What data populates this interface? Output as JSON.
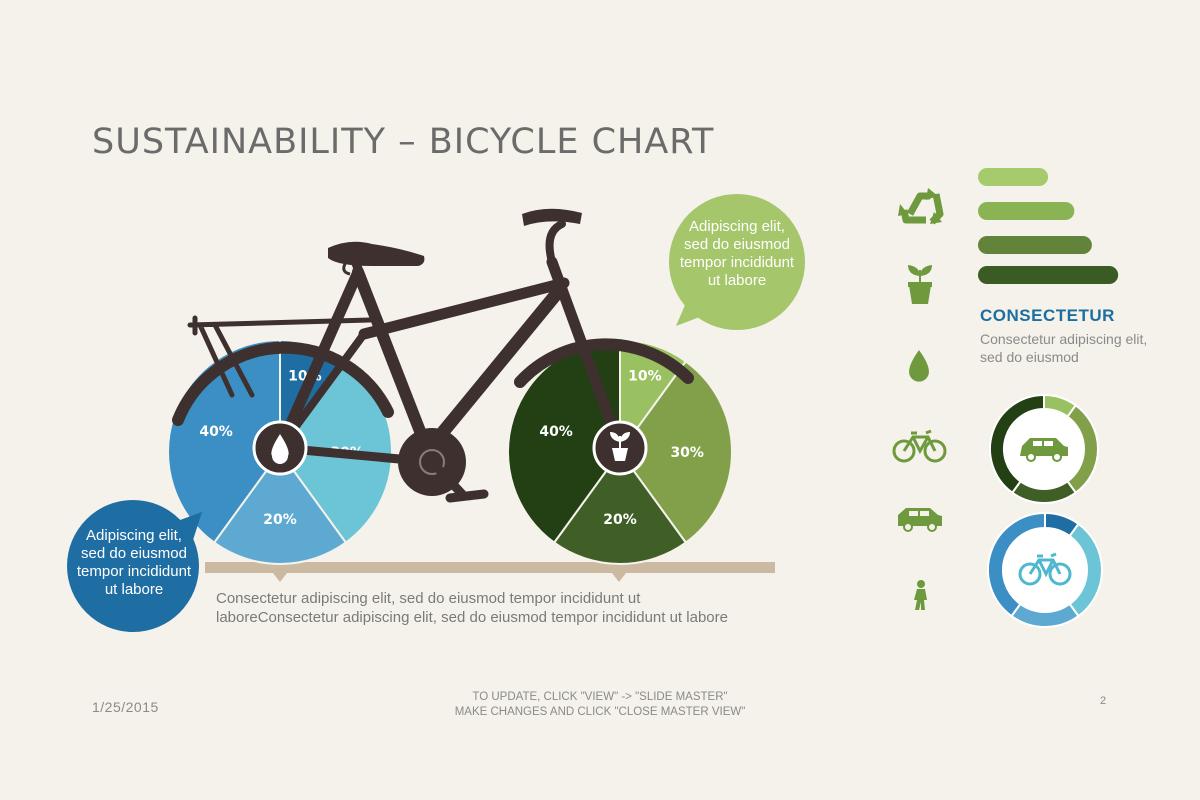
{
  "slide": {
    "title": "SUSTAINABILITY – BICYCLE CHART",
    "bubble_right": "Adipiscing elit, sed do eiusmod tempor incididunt ut labore",
    "bubble_left": "Adipiscing elit, sed do eiusmod tempor incididunt ut labore",
    "caption_line1": "Consectetur adipiscing elit, sed do eiusmod tempor incididunt ut",
    "caption_line2": "laboreConsectetur adipiscing elit, sed do eiusmod tempor incididunt ut labore",
    "legend_title": "CONSECTETUR",
    "legend_text": "Consectetur adipiscing elit, sed do eiusmod",
    "footer_date": "1/25/2015",
    "footer_note_line1": "TO UPDATE, CLICK \"VIEW\" -> \"SLIDE MASTER\"",
    "footer_note_line2": "MAKE CHANGES AND CLICK \"CLOSE MASTER VIEW\"",
    "page_number": "2"
  },
  "icons": [
    "recycle-icon",
    "plant-pot-icon",
    "water-drop-icon",
    "bicycle-icon",
    "car-icon",
    "pedestrian-icon"
  ],
  "colors": {
    "background": "#f4f2ea",
    "frame": "#3e302e",
    "blue_palette": [
      "#1f6ea3",
      "#6cc5d6",
      "#5ea9d1",
      "#3b8fc4"
    ],
    "green_palette": [
      "#9ac161",
      "#82a04a",
      "#3f5f27",
      "#233f14"
    ],
    "green_bars": [
      "#a6cb6c",
      "#8ab454",
      "#62843a",
      "#3a5b24"
    ],
    "accent_text": "#1d6fa0"
  },
  "chart_data": [
    {
      "type": "pie",
      "name": "rear-wheel",
      "labels": [
        "10%",
        "30%",
        "20%",
        "40%"
      ],
      "values": [
        10,
        30,
        20,
        40
      ],
      "colors": [
        "#1f6ea3",
        "#6cc5d6",
        "#5ea9d1",
        "#3b8fc4"
      ]
    },
    {
      "type": "pie",
      "name": "front-wheel",
      "labels": [
        "10%",
        "30%",
        "20%",
        "40%"
      ],
      "values": [
        10,
        30,
        20,
        40
      ],
      "colors": [
        "#9ac161",
        "#82a04a",
        "#3f5f27",
        "#233f14"
      ]
    },
    {
      "type": "bar",
      "orientation": "horizontal",
      "values": [
        0.48,
        0.66,
        0.78,
        0.96
      ],
      "colors": [
        "#a6cb6c",
        "#8ab454",
        "#62843a",
        "#3a5b24"
      ]
    },
    {
      "type": "pie",
      "name": "car-donut",
      "values": [
        10,
        30,
        20,
        40
      ],
      "colors": [
        "#9ac161",
        "#82a04a",
        "#3f5f27",
        "#233f14"
      ]
    },
    {
      "type": "pie",
      "name": "bicycle-donut",
      "values": [
        10,
        30,
        20,
        40
      ],
      "colors": [
        "#1f6ea3",
        "#6cc5d6",
        "#5ea9d1",
        "#3b8fc4"
      ]
    }
  ]
}
